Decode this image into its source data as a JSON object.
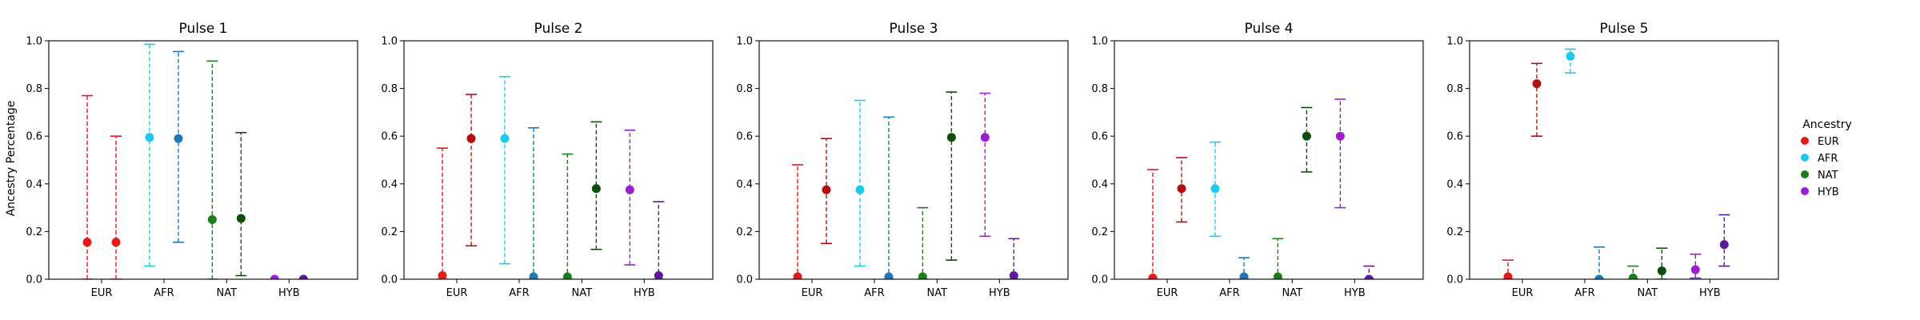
{
  "figure": {
    "ylabel": "Ancestry Percentage",
    "legend": {
      "title": "Ancestry",
      "placement": "right",
      "entries": [
        {
          "label": "EUR",
          "color": "#e41a1c"
        },
        {
          "label": "AFR",
          "color": "#1ec8ee"
        },
        {
          "label": "NAT",
          "color": "#1a7f1a"
        },
        {
          "label": "HYB",
          "color": "#9b1fcf"
        }
      ]
    }
  },
  "chart_data": [
    {
      "type": "scatter",
      "title": "Pulse 1",
      "categories": [
        "EUR",
        "AFR",
        "NAT",
        "HYB"
      ],
      "ylim": [
        0,
        1
      ],
      "yticks": [
        "0.0",
        "0.2",
        "0.4",
        "0.6",
        "0.8",
        "1.0"
      ],
      "grid": false,
      "series": [
        {
          "color": "#e41a1c",
          "points": [
            {
              "cat": 0,
              "off": -1,
              "y": 0.155,
              "lo": 0.0,
              "hi": 0.77
            },
            {
              "cat": 0,
              "off": 1,
              "y": 0.155,
              "lo": 0.0,
              "hi": 0.6
            }
          ]
        },
        {
          "color": "#1ec8ee",
          "points": [
            {
              "cat": 1,
              "off": -1,
              "y": 0.595,
              "lo": 0.055,
              "hi": 0.985
            }
          ]
        },
        {
          "color": "#1f77b4",
          "points": [
            {
              "cat": 1,
              "off": 1,
              "y": 0.59,
              "lo": 0.155,
              "hi": 0.955
            }
          ]
        },
        {
          "color": "#1a7f1a",
          "points": [
            {
              "cat": 2,
              "off": -1,
              "y": 0.25,
              "lo": 0.0,
              "hi": 0.915
            }
          ]
        },
        {
          "color": "#0d4d0d",
          "points": [
            {
              "cat": 2,
              "off": 1,
              "y": 0.255,
              "lo": 0.015,
              "hi": 0.615
            }
          ]
        },
        {
          "color": "#9b1fcf",
          "points": [
            {
              "cat": 3,
              "off": -1,
              "y": 0.0,
              "lo": 0.0,
              "hi": 0.0
            }
          ]
        },
        {
          "color": "#5a1a9a",
          "points": [
            {
              "cat": 3,
              "off": 1,
              "y": 0.0,
              "lo": 0.0,
              "hi": 0.0
            }
          ]
        }
      ]
    },
    {
      "type": "scatter",
      "title": "Pulse 2",
      "categories": [
        "EUR",
        "AFR",
        "NAT",
        "HYB"
      ],
      "ylim": [
        0,
        1
      ],
      "yticks": [
        "0.0",
        "0.2",
        "0.4",
        "0.6",
        "0.8",
        "1.0"
      ],
      "grid": false,
      "series": [
        {
          "color": "#e41a1c",
          "points": [
            {
              "cat": 0,
              "off": -1,
              "y": 0.015,
              "lo": 0.0,
              "hi": 0.55
            }
          ]
        },
        {
          "color": "#b01010",
          "points": [
            {
              "cat": 0,
              "off": 1,
              "y": 0.59,
              "lo": 0.14,
              "hi": 0.775
            }
          ]
        },
        {
          "color": "#1ec8ee",
          "points": [
            {
              "cat": 1,
              "off": -1,
              "y": 0.59,
              "lo": 0.065,
              "hi": 0.85
            }
          ]
        },
        {
          "color": "#1f77b4",
          "points": [
            {
              "cat": 1,
              "off": 1,
              "y": 0.01,
              "lo": 0.0,
              "hi": 0.635
            }
          ]
        },
        {
          "color": "#1a7f1a",
          "points": [
            {
              "cat": 2,
              "off": -1,
              "y": 0.01,
              "lo": 0.0,
              "hi": 0.525
            }
          ]
        },
        {
          "color": "#0d4d0d",
          "points": [
            {
              "cat": 2,
              "off": 1,
              "y": 0.38,
              "lo": 0.125,
              "hi": 0.66
            }
          ]
        },
        {
          "color": "#9b1fcf",
          "points": [
            {
              "cat": 3,
              "off": -1,
              "y": 0.375,
              "lo": 0.06,
              "hi": 0.625
            }
          ]
        },
        {
          "color": "#5a1a9a",
          "points": [
            {
              "cat": 3,
              "off": 1,
              "y": 0.015,
              "lo": 0.0,
              "hi": 0.325
            }
          ]
        }
      ]
    },
    {
      "type": "scatter",
      "title": "Pulse 3",
      "categories": [
        "EUR",
        "AFR",
        "NAT",
        "HYB"
      ],
      "ylim": [
        0,
        1
      ],
      "yticks": [
        "0.0",
        "0.2",
        "0.4",
        "0.6",
        "0.8",
        "1.0"
      ],
      "grid": false,
      "series": [
        {
          "color": "#e41a1c",
          "points": [
            {
              "cat": 0,
              "off": -1,
              "y": 0.01,
              "lo": 0.0,
              "hi": 0.48
            }
          ]
        },
        {
          "color": "#b01010",
          "points": [
            {
              "cat": 0,
              "off": 1,
              "y": 0.375,
              "lo": 0.15,
              "hi": 0.59
            }
          ]
        },
        {
          "color": "#1ec8ee",
          "points": [
            {
              "cat": 1,
              "off": -1,
              "y": 0.375,
              "lo": 0.055,
              "hi": 0.75
            }
          ]
        },
        {
          "color": "#1f77b4",
          "points": [
            {
              "cat": 1,
              "off": 1,
              "y": 0.01,
              "lo": 0.0,
              "hi": 0.68
            }
          ]
        },
        {
          "color": "#1a7f1a",
          "points": [
            {
              "cat": 2,
              "off": -1,
              "y": 0.01,
              "lo": 0.0,
              "hi": 0.3
            }
          ]
        },
        {
          "color": "#0d4d0d",
          "points": [
            {
              "cat": 2,
              "off": 1,
              "y": 0.595,
              "lo": 0.08,
              "hi": 0.785
            }
          ]
        },
        {
          "color": "#9b1fcf",
          "points": [
            {
              "cat": 3,
              "off": -1,
              "y": 0.595,
              "lo": 0.18,
              "hi": 0.78
            }
          ]
        },
        {
          "color": "#5a1a9a",
          "points": [
            {
              "cat": 3,
              "off": 1,
              "y": 0.015,
              "lo": 0.0,
              "hi": 0.17
            }
          ]
        }
      ]
    },
    {
      "type": "scatter",
      "title": "Pulse 4",
      "categories": [
        "EUR",
        "AFR",
        "NAT",
        "HYB"
      ],
      "ylim": [
        0,
        1
      ],
      "yticks": [
        "0.0",
        "0.2",
        "0.4",
        "0.6",
        "0.8",
        "1.0"
      ],
      "grid": false,
      "series": [
        {
          "color": "#e41a1c",
          "points": [
            {
              "cat": 0,
              "off": -1,
              "y": 0.005,
              "lo": 0.0,
              "hi": 0.46
            }
          ]
        },
        {
          "color": "#b01010",
          "points": [
            {
              "cat": 0,
              "off": 1,
              "y": 0.38,
              "lo": 0.24,
              "hi": 0.51
            }
          ]
        },
        {
          "color": "#1ec8ee",
          "points": [
            {
              "cat": 1,
              "off": -1,
              "y": 0.38,
              "lo": 0.18,
              "hi": 0.575
            }
          ]
        },
        {
          "color": "#1f77b4",
          "points": [
            {
              "cat": 1,
              "off": 1,
              "y": 0.01,
              "lo": 0.0,
              "hi": 0.09
            }
          ]
        },
        {
          "color": "#1a7f1a",
          "points": [
            {
              "cat": 2,
              "off": -1,
              "y": 0.01,
              "lo": 0.0,
              "hi": 0.17
            }
          ]
        },
        {
          "color": "#0d4d0d",
          "points": [
            {
              "cat": 2,
              "off": 1,
              "y": 0.6,
              "lo": 0.45,
              "hi": 0.72
            }
          ]
        },
        {
          "color": "#9b1fcf",
          "points": [
            {
              "cat": 3,
              "off": -1,
              "y": 0.6,
              "lo": 0.3,
              "hi": 0.755
            }
          ]
        },
        {
          "color": "#5a1a9a",
          "points": [
            {
              "cat": 3,
              "off": 1,
              "y": 0.0,
              "lo": 0.0,
              "hi": 0.055
            }
          ]
        }
      ]
    },
    {
      "type": "scatter",
      "title": "Pulse 5",
      "categories": [
        "EUR",
        "AFR",
        "NAT",
        "HYB"
      ],
      "ylim": [
        0,
        1
      ],
      "yticks": [
        "0.0",
        "0.2",
        "0.4",
        "0.6",
        "0.8",
        "1.0"
      ],
      "grid": false,
      "series": [
        {
          "color": "#e41a1c",
          "points": [
            {
              "cat": 0,
              "off": -1,
              "y": 0.01,
              "lo": 0.0,
              "hi": 0.08
            }
          ]
        },
        {
          "color": "#b01010",
          "points": [
            {
              "cat": 0,
              "off": 1,
              "y": 0.82,
              "lo": 0.6,
              "hi": 0.905
            }
          ]
        },
        {
          "color": "#1ec8ee",
          "points": [
            {
              "cat": 1,
              "off": -1,
              "y": 0.935,
              "lo": 0.865,
              "hi": 0.965
            }
          ]
        },
        {
          "color": "#1f77b4",
          "points": [
            {
              "cat": 1,
              "off": 1,
              "y": 0.0,
              "lo": 0.0,
              "hi": 0.135
            }
          ]
        },
        {
          "color": "#1a7f1a",
          "points": [
            {
              "cat": 2,
              "off": -1,
              "y": 0.005,
              "lo": 0.0,
              "hi": 0.055
            }
          ]
        },
        {
          "color": "#0d4d0d",
          "points": [
            {
              "cat": 2,
              "off": 1,
              "y": 0.035,
              "lo": 0.0,
              "hi": 0.13
            }
          ]
        },
        {
          "color": "#9b1fcf",
          "points": [
            {
              "cat": 3,
              "off": -1,
              "y": 0.04,
              "lo": 0.005,
              "hi": 0.105
            }
          ]
        },
        {
          "color": "#5a1a9a",
          "points": [
            {
              "cat": 3,
              "off": 1,
              "y": 0.145,
              "lo": 0.055,
              "hi": 0.27
            }
          ]
        }
      ]
    }
  ]
}
